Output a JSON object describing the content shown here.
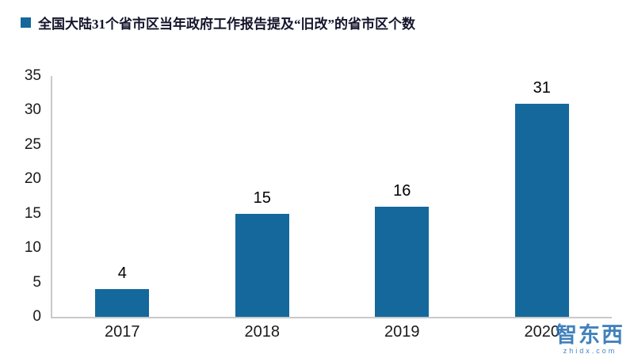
{
  "header": {
    "legend_label": "全国大陆31个省市区当年政府工作报告提及“旧改”的省市区个数"
  },
  "colors": {
    "bar": "#15689c",
    "legend_swatch": "#15689c",
    "axis": "#c9c9c9",
    "watermark": "#2e74b5"
  },
  "watermark": {
    "text": "智东西",
    "subtext": "zhidx.com"
  },
  "chart_data": {
    "type": "bar",
    "title": "全国大陆31个省市区当年政府工作报告提及“旧改”的省市区个数",
    "categories": [
      "2017",
      "2018",
      "2019",
      "2020"
    ],
    "values": [
      4,
      15,
      16,
      31
    ],
    "xlabel": "",
    "ylabel": "",
    "ylim": [
      0,
      35
    ],
    "ytick_step": 5,
    "grid": false,
    "legend_position": "top-left",
    "bar_color": "#15689c"
  }
}
